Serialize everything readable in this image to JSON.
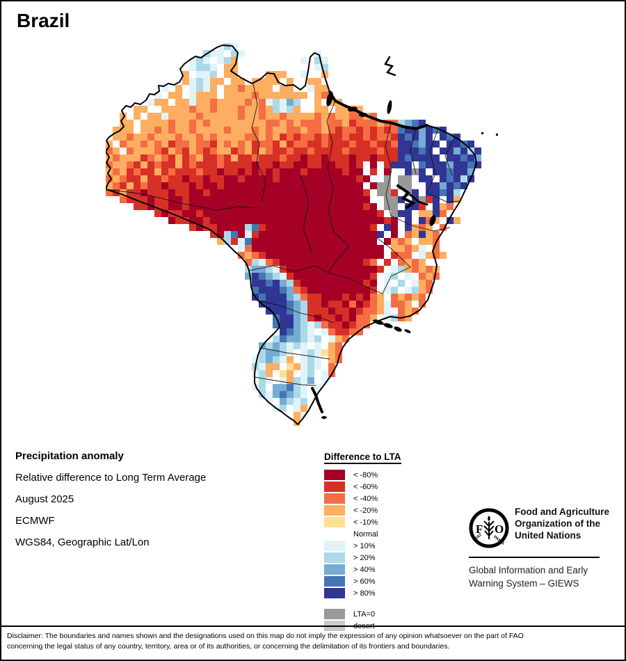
{
  "page": {
    "title": "Brazil"
  },
  "map": {
    "cell": 10,
    "palette": {
      "a": "#a50026",
      "b": "#d73027",
      "c": "#f46d43",
      "d": "#fdae61",
      "e": "#fee090",
      "n": "#ffffff",
      "f": "#e0f3f8",
      "g": "#abd9e9",
      "h": "#74add1",
      "i": "#4575b4",
      "j": "#313695",
      "k": "#999999",
      "l": "#c9c9c9"
    },
    "rows": [
      "................fgf...................................",
      "..............gffngf.........nf.......................",
      "............fgfnfgdn........fngf......................",
      "...........nfggfnddn........nnfg......................",
      "...........dnffgnddn...ddd..fnnd......................",
      "..........ndfgfddnddnddddnd.nddn......................",
      ".......nfndnfgfdnddcddddndd.nfdd......................",
      ".......fnddnfdddnddddcdddddddndc......................",
      "....nnfddnddfddcddddcdcfgfhgnndndd....................",
      "...nddnnddddcddcdddcddcdgfgdnnddnddcd.................",
      "..dndnddfddddcdddddcddcddcddddcdcddccdc...............",
      "..ddnddddcddcdcddddddddccdcdcccdccdbcccdccghij........",
      ".dddnddcdcddcddddcdddcdcddccdccdcbccbcbcbcijjhjij.....",
      "nddcddcdddcddcdcddddccdcdbcbccbcbbcbbcbccbjijhjnjij...",
      "dncddcdcdbccdccbdcdcdbccbdbccbbcbbbcbbcbbcjjihjjnjjij.",
      "cdncdddcbdcbdcbcddbcdbdcbbcbbcbbbbcbbbbcbbjjjijnjjhjgj",
      "dcdddbcdcbdbcdbbcbdbbcbbbcbbabbabbbabbabbbjijjjjnjjijh",
      "cddcbdbcbbdbcbbbcbbbbabbabbaabbaabbabnanbjjjnijjjhjjij",
      "dcdbcbbdbcbbbcbbabbabababaaabaaaaabaanbnannjkjnjjijjh.",
      "cdcbbdbbcbbabbabbaabaaaabaaaaaaaaaaabannknkknjjnjijgj.",
      "dcbdbcbbabbbabaabaaaaaaaaaaaaaaaaaaaanakknkknnjjhjij..",
      "cbdbbabbbabbaabaaaaaaaaaaaaaaaaaaaaaabnkkbnkjnjjijg...",
      "..cbbbabbaabaaaaaaaaaaaaaaaaaaaaaaaaaannkkjnjkbjnjd...",
      "....bbabbaabaaaaaaaaaaaaaaaaaaaaaaaaabankknjjbnjdcn...",
      ".......babbaabaaaaaaaaaaaaaaaaaaaaaaaaabnkjjnddjcn....",
      ".........abbaabaaaaaaaaaaaaaaaaaaaaaaaaabanjnjcdnjd...",
      "............babbaaaagibaaaaaaaaaaaaaaabnjanjdcdnc.....",
      "...............bagiafbaaaaaaaaaaaaaaaaajnancdjdcn.....",
      "................dgbfiaaaaaaaaaaaaaaaaaanadcdnddc......",
      "..................nfcaaaaaaaaaaaaaaaaaaanddcdfnc......",
      "...................cdcbaaaaaaaaaaaaaaaaanbccnfdcd.....",
      "....................cgfcbaaaaaaaaaaaabcnbncdcdn.......",
      "....................ghhgfbaaaaaaaaaaaaabnfgdcdcd......",
      "....................hjihgfbaaaaaaaaaaabnfgnfncdc......",
      ".....................jjijhgbaaaaaaaaabanfngnfdc.......",
      ".....................ijjjihcbaaaaaaaaabnfgnfgdc.......",
      ".....................jijjjhgcbbaaababacdncdcdc........",
      "......................jjjjihgbbabbacabcdfccdnc........",
      ".......................jjjihgbbbabbabccdfncdc.........",
      "........................ijjhgbabbabaccdnfgcd..........",
      "........................ijjhgfgcbbabcc................",
      ".........................jihgfnfcbbcc.................",
      "........................gihhgfgnfdc...................",
      "......................hghgfgfnfndc....................",
      "......................ghhgfnfgfedc....................",
      ".....................fghgfdnfgfndc....................",
      ".....................gfddnedfgfnc.....................",
      ".....................fgdnednfgnfc.....................",
      ".....................ngfnfdgfhnf......................",
      ".....................fgnhhigfnf.......................",
      "......................gfhihgfn........................",
      ".......................fnhgfgn........................",
      "........................fgnfd.........................",
      "..........................ndf.........................",
      "...........................dn.........................",
      "......................................................"
    ],
    "islands": [
      [
        690,
        188
      ],
      [
        711,
        190
      ]
    ]
  },
  "legend": {
    "title": "Difference to LTA",
    "items": [
      {
        "color": "#a50026",
        "label": "< -80%"
      },
      {
        "color": "#d73027",
        "label": "< -60%"
      },
      {
        "color": "#f46d43",
        "label": "< -40%"
      },
      {
        "color": "#fdae61",
        "label": "< -20%"
      },
      {
        "color": "#fee090",
        "label": "< -10%"
      },
      {
        "color": "#ffffff",
        "label": "Normal"
      },
      {
        "color": "#e0f3f8",
        "label": "> 10%"
      },
      {
        "color": "#abd9e9",
        "label": "> 20%"
      },
      {
        "color": "#74add1",
        "label": "> 40%"
      },
      {
        "color": "#4575b4",
        "label": "> 60%"
      },
      {
        "color": "#313695",
        "label": "> 80%"
      }
    ],
    "extra_items": [
      {
        "color": "#999999",
        "label": "LTA=0"
      },
      {
        "color": "#c9c9c9",
        "label": "desert"
      }
    ]
  },
  "info": {
    "lines": [
      "Precipitation anomaly",
      "Relative difference to Long Term Average",
      "August 2025",
      "ECMWF",
      "WGS84, Geographic Lat/Lon"
    ]
  },
  "branding": {
    "logo_letters": "FAO",
    "logo_motto_left": "FIAT",
    "logo_motto_right": "PANIS",
    "org_lines": [
      "Food and Agriculture",
      "Organization of the",
      "United Nations"
    ],
    "giews_lines": [
      "Global Information and Early",
      "Warning System – GIEWS"
    ]
  },
  "disclaimer": {
    "line1": "Disclaimer: The boundaries and names shown and the designations used on this map do not imply the expression of any opinion whatsoever on the part of FAO",
    "line2": "concerning the legal status of any country, territory, area or of its authorities, or concerning the delimitation of its frontiers and boundaries."
  }
}
